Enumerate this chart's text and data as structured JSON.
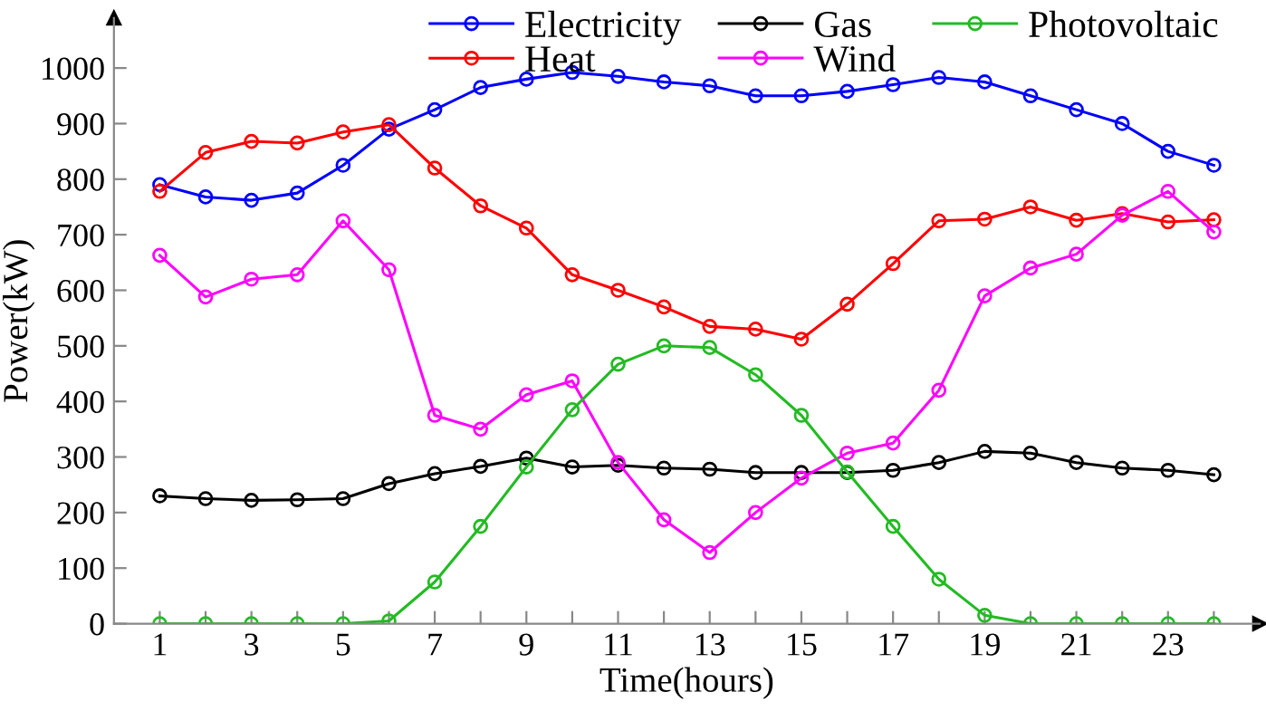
{
  "chart_data": {
    "type": "line",
    "xlabel": "Time(hours)",
    "ylabel": "Power(kW)",
    "x": [
      1,
      2,
      3,
      4,
      5,
      6,
      7,
      8,
      9,
      10,
      11,
      12,
      13,
      14,
      15,
      16,
      17,
      18,
      19,
      20,
      21,
      22,
      23,
      24
    ],
    "series": [
      {
        "name": "Electricity",
        "color": "#0000ff",
        "values": [
          790,
          768,
          762,
          775,
          825,
          890,
          925,
          965,
          980,
          992,
          985,
          975,
          968,
          950,
          950,
          958,
          970,
          983,
          975,
          950,
          925,
          900,
          850,
          825
        ]
      },
      {
        "name": "Heat",
        "color": "#ff0000",
        "values": [
          778,
          848,
          868,
          865,
          885,
          898,
          820,
          752,
          712,
          628,
          600,
          570,
          535,
          530,
          512,
          575,
          648,
          725,
          728,
          750,
          726,
          738,
          723,
          727
        ]
      },
      {
        "name": "Gas",
        "color": "#000000",
        "values": [
          230,
          225,
          222,
          223,
          225,
          252,
          270,
          283,
          298,
          282,
          285,
          280,
          278,
          272,
          272,
          272,
          276,
          290,
          310,
          307,
          290,
          280,
          276,
          268
        ]
      },
      {
        "name": "Wind",
        "color": "#ff00ff",
        "values": [
          663,
          588,
          620,
          628,
          725,
          637,
          375,
          350,
          412,
          437,
          290,
          187,
          128,
          200,
          262,
          307,
          325,
          420,
          590,
          640,
          665,
          735,
          778,
          705
        ]
      },
      {
        "name": "Photovoltaic",
        "color": "#22bb22",
        "values": [
          0,
          0,
          0,
          0,
          0,
          5,
          75,
          175,
          282,
          385,
          467,
          500,
          497,
          448,
          375,
          273,
          175,
          80,
          15,
          0,
          0,
          0,
          0,
          0
        ]
      }
    ],
    "xlim": [
      0,
      25
    ],
    "ylim": [
      0,
      1090
    ],
    "xticks": [
      1,
      {
        "value": 2,
        "label": null
      },
      3,
      {
        "value": 4,
        "label": null
      },
      5,
      {
        "value": 6,
        "label": null
      },
      7,
      {
        "value": 8,
        "label": null
      },
      9,
      {
        "value": 10,
        "label": null
      },
      11,
      {
        "value": 12,
        "label": null
      },
      13,
      {
        "value": 14,
        "label": null
      },
      15,
      {
        "value": 16,
        "label": null
      },
      17,
      {
        "value": 18,
        "label": null
      },
      19,
      {
        "value": 20,
        "label": null
      },
      21,
      {
        "value": 22,
        "label": null
      },
      23,
      {
        "value": 24,
        "label": null
      }
    ],
    "yticks": [
      0,
      100,
      200,
      300,
      400,
      500,
      600,
      700,
      800,
      900,
      1000
    ],
    "marker": "circle",
    "line_style": "solid",
    "grid": false,
    "legend": "top"
  }
}
